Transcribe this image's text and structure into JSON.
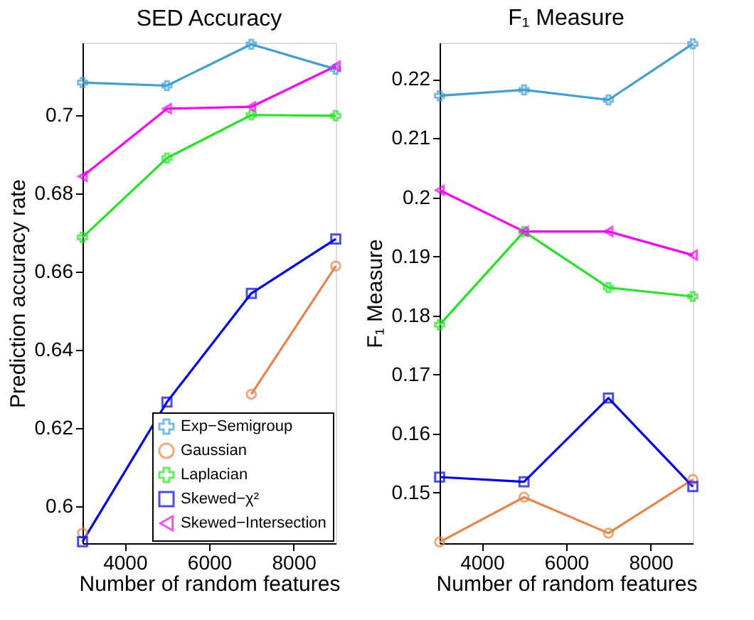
{
  "chart_data": [
    {
      "type": "line",
      "title": "SED Accuracy",
      "xlabel": "Number of random features",
      "ylabel": "Prediction accuracy rate",
      "x": [
        3000,
        5000,
        7000,
        9000
      ],
      "xlim": [
        3000,
        9000
      ],
      "xticks": [
        4000,
        6000,
        8000
      ],
      "ylim": [
        0.5905,
        0.7185
      ],
      "yticks": [
        0.6,
        0.62,
        0.64,
        0.66,
        0.68,
        0.7
      ],
      "grid": false,
      "legend": "bottom right",
      "series": [
        {
          "name": "Exp−Semigroup",
          "color": "#3f9fd5",
          "marker": "cross",
          "values": [
            0.7083,
            0.7075,
            0.7181,
            0.7117
          ]
        },
        {
          "name": "Gaussian",
          "color": "#e8844a",
          "marker": "circle",
          "values": [
            0.5931,
            null,
            0.6286,
            0.6614
          ]
        },
        {
          "name": "Laplacian",
          "color": "#22e622",
          "marker": "cross",
          "values": [
            0.6687,
            0.689,
            0.7,
            0.6998
          ]
        },
        {
          "name": "Skewed−χ²",
          "color": "#0000ff",
          "marker": "square",
          "values": [
            0.5909,
            0.6266,
            0.6544,
            0.6683
          ]
        },
        {
          "name": "Skewed−Intersection",
          "color": "#ff00ff",
          "marker": "triangle",
          "values": [
            0.6843,
            0.7016,
            0.7021,
            0.7125
          ]
        }
      ]
    },
    {
      "type": "line",
      "title": "F₁ Measure",
      "xlabel": "Number of random features",
      "ylabel": "F₁ Measure",
      "x": [
        3000,
        5000,
        7000,
        9000
      ],
      "xlim": [
        3000,
        9000
      ],
      "xticks": [
        4000,
        6000,
        8000
      ],
      "ylim": [
        0.1414,
        0.2262
      ],
      "yticks": [
        0.15,
        0.16,
        0.17,
        0.18,
        0.19,
        0.2,
        0.21,
        0.22
      ],
      "grid": false,
      "legend": false,
      "series": [
        {
          "color": "#3f9fd5",
          "marker": "cross",
          "values": [
            0.2172,
            0.2182,
            0.2165,
            0.226
          ]
        },
        {
          "color": "#e8844a",
          "marker": "circle",
          "values": [
            0.1416,
            0.1492,
            0.1431,
            0.1522
          ]
        },
        {
          "color": "#22e622",
          "marker": "cross",
          "values": [
            0.1784,
            0.1942,
            0.1847,
            0.1832
          ]
        },
        {
          "color": "#0000ff",
          "marker": "square",
          "values": [
            0.1526,
            0.1518,
            0.166,
            0.151
          ]
        },
        {
          "color": "#ff00ff",
          "marker": "triangle",
          "values": [
            0.2012,
            0.1942,
            0.1942,
            0.1902
          ]
        }
      ]
    }
  ]
}
